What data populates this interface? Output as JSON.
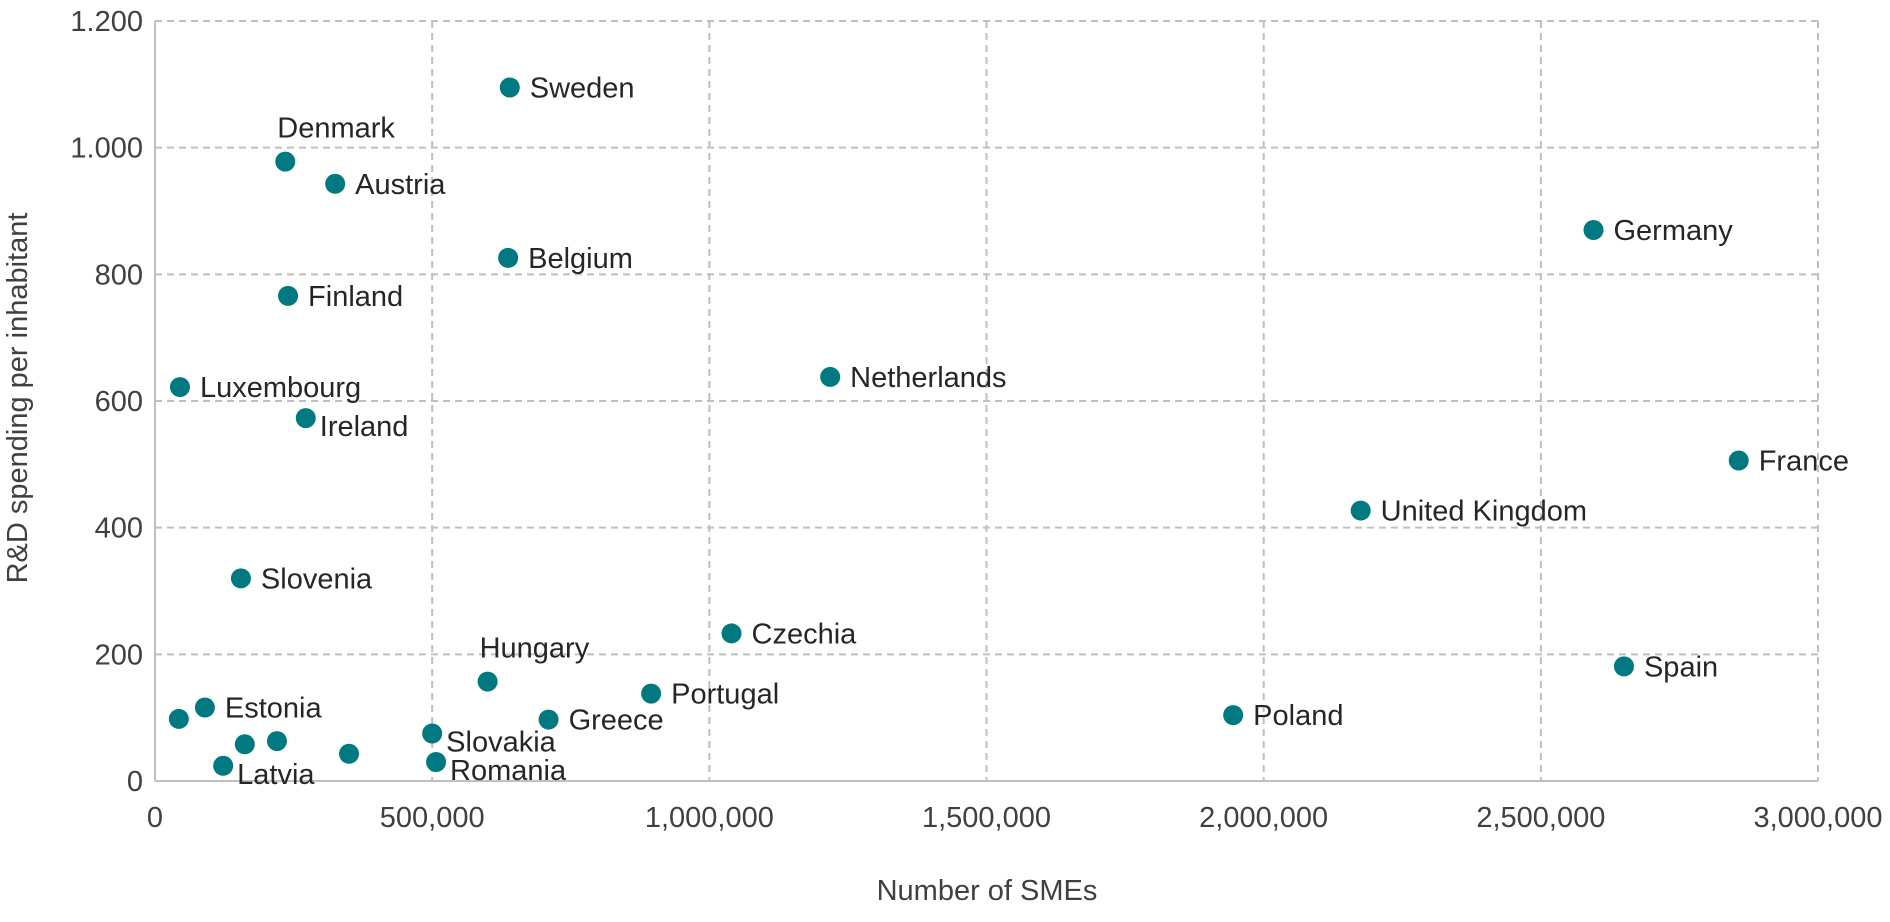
{
  "chart_data": {
    "type": "scatter",
    "title": "",
    "xlabel": "Number of SMEs",
    "ylabel": "R&D spending per inhabitant",
    "xlim": [
      0,
      3000000
    ],
    "ylim": [
      0,
      1200
    ],
    "x_ticks": [
      {
        "value": 0,
        "label": "0"
      },
      {
        "value": 500000,
        "label": "500,000"
      },
      {
        "value": 1000000,
        "label": "1,000,000"
      },
      {
        "value": 1500000,
        "label": "1,500,000"
      },
      {
        "value": 2000000,
        "label": "2,000,000"
      },
      {
        "value": 2500000,
        "label": "2,500,000"
      },
      {
        "value": 3000000,
        "label": "3,000,000"
      }
    ],
    "y_ticks": [
      {
        "value": 0,
        "label": "0"
      },
      {
        "value": 200,
        "label": "200"
      },
      {
        "value": 400,
        "label": "400"
      },
      {
        "value": 600,
        "label": "600"
      },
      {
        "value": 800,
        "label": "800"
      },
      {
        "value": 1000,
        "label": "1.000"
      },
      {
        "value": 1200,
        "label": "1.200"
      }
    ],
    "grid": true,
    "grid_style": "dashed",
    "marker_color": "#007a80",
    "grid_color": "#c0c0c0",
    "text_color": "#404040",
    "points": [
      {
        "label": "Sweden",
        "x": 640000,
        "y": 1095,
        "label_pos": "right"
      },
      {
        "label": "Denmark",
        "x": 235000,
        "y": 978,
        "label_pos": "above"
      },
      {
        "label": "Austria",
        "x": 325000,
        "y": 943,
        "label_pos": "right"
      },
      {
        "label": "Belgium",
        "x": 637000,
        "y": 826,
        "label_pos": "right"
      },
      {
        "label": "Finland",
        "x": 240000,
        "y": 766,
        "label_pos": "right"
      },
      {
        "label": "Germany",
        "x": 2595000,
        "y": 870,
        "label_pos": "right"
      },
      {
        "label": "Netherlands",
        "x": 1218000,
        "y": 638,
        "label_pos": "right"
      },
      {
        "label": "Luxembourg",
        "x": 45000,
        "y": 622,
        "label_pos": "right"
      },
      {
        "label": "Ireland",
        "x": 272000,
        "y": 573,
        "label_pos": "right-below"
      },
      {
        "label": "France",
        "x": 2857000,
        "y": 506,
        "label_pos": "right"
      },
      {
        "label": "United Kingdom",
        "x": 2175000,
        "y": 427,
        "label_pos": "right"
      },
      {
        "label": "Slovenia",
        "x": 155000,
        "y": 320,
        "label_pos": "right"
      },
      {
        "label": "Czechia",
        "x": 1040000,
        "y": 233,
        "label_pos": "right"
      },
      {
        "label": "Spain",
        "x": 2650000,
        "y": 181,
        "label_pos": "right"
      },
      {
        "label": "Hungary",
        "x": 600000,
        "y": 157,
        "label_pos": "above"
      },
      {
        "label": "Portugal",
        "x": 895000,
        "y": 138,
        "label_pos": "right"
      },
      {
        "label": "Greece",
        "x": 710000,
        "y": 97,
        "label_pos": "right"
      },
      {
        "label": "Poland",
        "x": 1945000,
        "y": 104,
        "label_pos": "right"
      },
      {
        "label": "Estonia",
        "x": 90000,
        "y": 116,
        "label_pos": "right"
      },
      {
        "label": "Slovakia",
        "x": 500000,
        "y": 75,
        "label_pos": "right-below"
      },
      {
        "label": "Romania",
        "x": 507000,
        "y": 30,
        "label_pos": "right-below"
      },
      {
        "label": "Latvia",
        "x": 123000,
        "y": 24,
        "label_pos": "right-below"
      },
      {
        "label": "",
        "x": 43000,
        "y": 98,
        "label_pos": "none"
      },
      {
        "label": "",
        "x": 162000,
        "y": 58,
        "label_pos": "none"
      },
      {
        "label": "",
        "x": 220000,
        "y": 63,
        "label_pos": "none"
      },
      {
        "label": "",
        "x": 350000,
        "y": 43,
        "label_pos": "none"
      }
    ]
  }
}
